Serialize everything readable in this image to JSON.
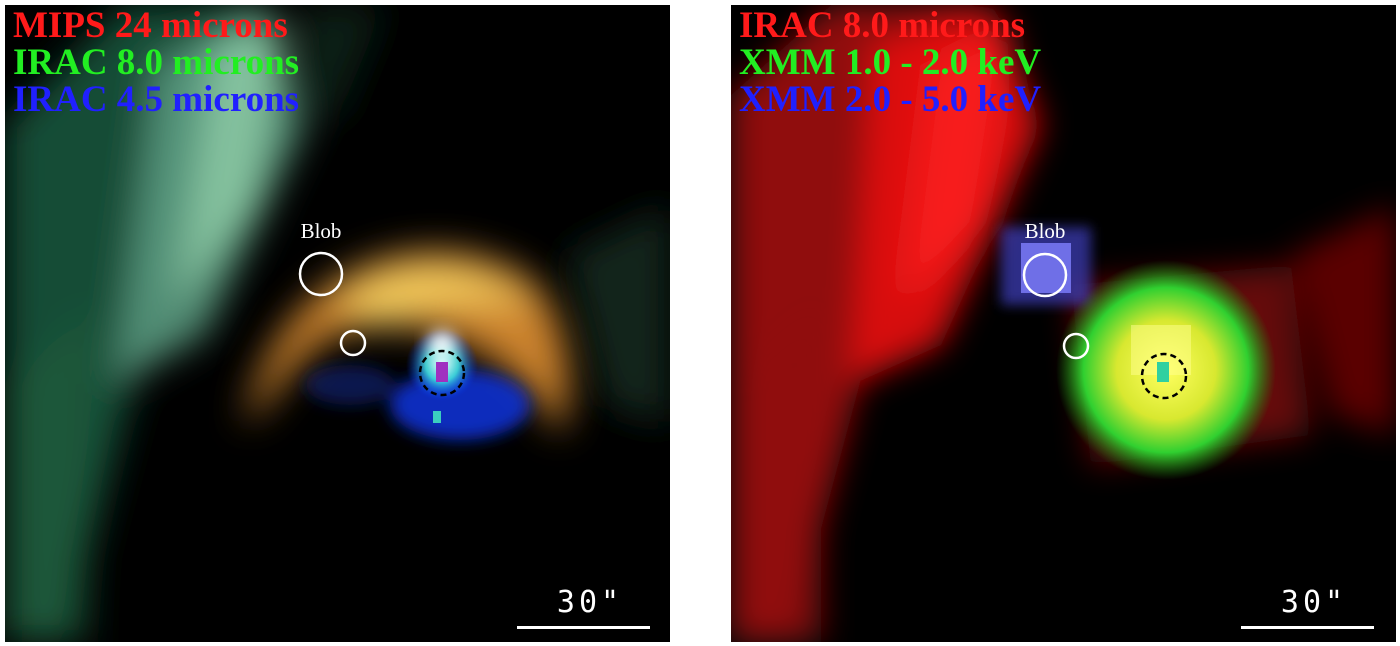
{
  "panels": [
    {
      "legend": [
        {
          "text": "MIPS 24 microns",
          "color": "#ff1a1a"
        },
        {
          "text": "IRAC 8.0 microns",
          "color": "#22ee22"
        },
        {
          "text": "IRAC 4.5 microns",
          "color": "#2020ff"
        }
      ],
      "blob_label": "Blob",
      "scale_label": "30\""
    },
    {
      "legend": [
        {
          "text": "IRAC 8.0 microns",
          "color": "#ff1a1a"
        },
        {
          "text": "XMM 1.0 - 2.0 keV",
          "color": "#22ee22"
        },
        {
          "text": "XMM 2.0 - 5.0 keV",
          "color": "#2020ff"
        }
      ],
      "blob_label": "Blob",
      "scale_label": "30\""
    }
  ]
}
